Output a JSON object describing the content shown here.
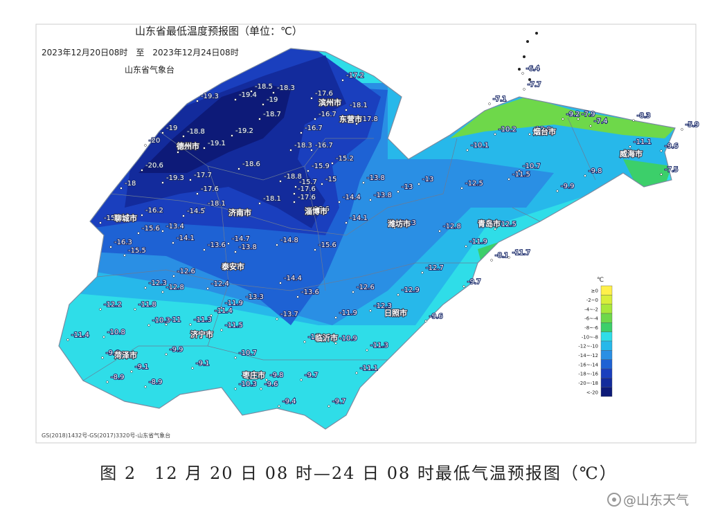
{
  "header": {
    "title": "山东省最低温度预报图（单位：℃）",
    "period": "2023年12月20日08时　至　2023年12月24日08时",
    "agency": "山东省气象台"
  },
  "legend": {
    "unit": "℃",
    "items": [
      "≥0",
      "-2~0",
      "-4~-2",
      "-6~-4",
      "-8~-6",
      "-10~-8",
      "-12~-10",
      "-14~-12",
      "-16~-14",
      "-18~-16",
      "-20~-18",
      "<-20"
    ]
  },
  "cities": [
    "滨州市",
    "东营市",
    "德州市",
    "济南市",
    "淄博市",
    "潍坊市",
    "青岛市",
    "聊城市",
    "泰安市",
    "烟台市",
    "威海市",
    "济宁市",
    "临沂市",
    "日照市",
    "枣庄市",
    "菏泽市"
  ],
  "stations": [
    -19.3,
    -19.4,
    -18.5,
    -18.3,
    -19,
    -17.6,
    -17.2,
    -18.7,
    -16.7,
    -18.1,
    -17.8,
    -19.2,
    -16.7,
    -19,
    -18.8,
    -20,
    -19.1,
    -18.8,
    -18.3,
    -16.7,
    -18.6,
    -15.9,
    -15.2,
    -20.6,
    -19.3,
    -18,
    -17.7,
    -18.8,
    -15.7,
    -17.6,
    -15,
    -13.8,
    -13,
    -13,
    -17.6,
    -18.1,
    -18.1,
    -17.6,
    -14.4,
    -13.8,
    -16.2,
    -14.5,
    -18.6,
    -14.1,
    -15.7,
    -15.6,
    -13.4,
    -13.3,
    -12.8,
    -12.5,
    -16.3,
    -15.5,
    -14.1,
    -14.7,
    -13.6,
    -13.8,
    -14.8,
    -15.6,
    -11.9,
    -12.6,
    -14.4,
    -12.7,
    -12.3,
    -12.8,
    -12.4,
    -12.6,
    -12.9,
    -9.7,
    -8.1,
    -11.7,
    -13.3,
    -13.6,
    -11.9,
    -12.2,
    -11.8,
    -11.4,
    -12.3,
    -13.7,
    -11.9,
    -9.6,
    -10.3,
    -11,
    -11.3,
    -11.5,
    -10.8,
    -11.4,
    -11,
    -10.9,
    -11.3,
    -9.6,
    -9.9,
    -10.7,
    -9.1,
    -9.1,
    -11.1,
    -8.9,
    -8.9,
    -9.7,
    -9.8,
    -10.3,
    -9.6,
    -9.4,
    -9.7,
    -10.1,
    -10.2,
    -12.8,
    -9.2,
    -7.9,
    -7.4,
    -8.3,
    -5.9,
    -11.1,
    -9.6,
    -7.5,
    -10.7,
    -11.5,
    -9.8,
    -9.9,
    -6.4,
    -7.7,
    -7.1,
    -12.5
  ],
  "source": "GS(2018)1432号-GS(2017)3320号-山东省气象台",
  "caption": "图 2　12 月 20 日 08 时—24 日 08 时最低气温预报图（℃）",
  "watermark": "@山东天气"
}
